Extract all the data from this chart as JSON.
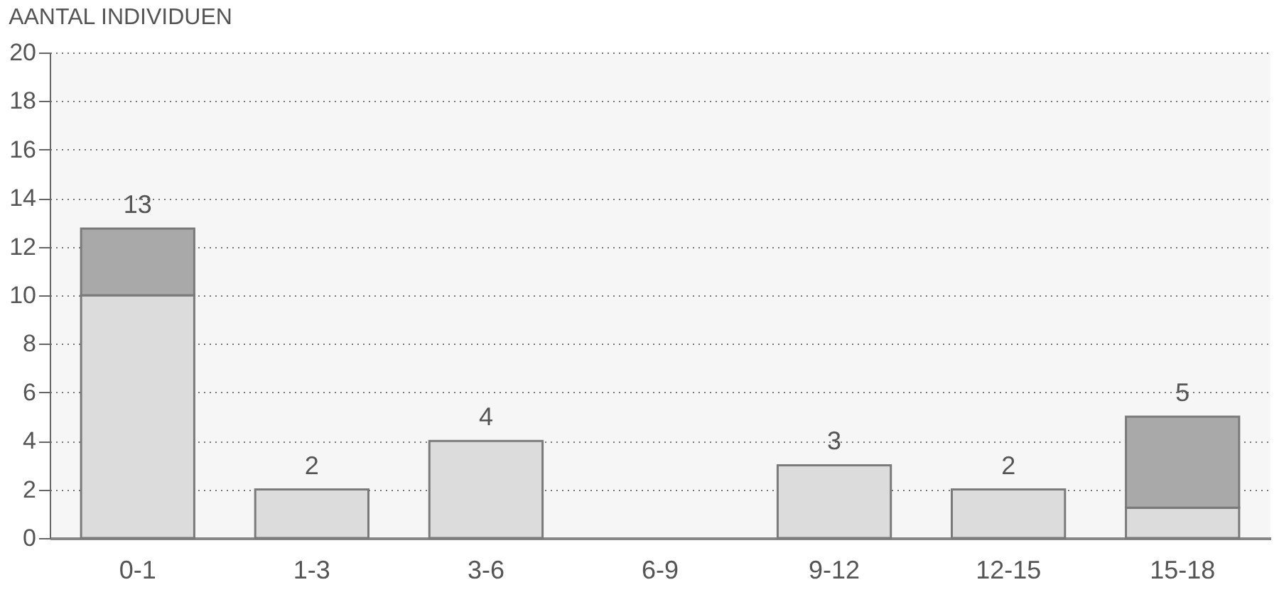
{
  "chart_data": {
    "type": "bar",
    "title": "AANTAL INDIVIDUEN",
    "stacked": true,
    "categories": [
      "0-1",
      "1-3",
      "3-6",
      "6-9",
      "9-12",
      "12-15",
      "15-18"
    ],
    "series": [
      {
        "color": "#dcdcdc",
        "values": [
          10,
          2,
          4,
          null,
          3,
          2,
          1.25
        ]
      },
      {
        "color": "#a9a9a9",
        "values": [
          2.75,
          null,
          null,
          null,
          null,
          null,
          3.75
        ]
      }
    ],
    "totals": [
      "13",
      "2",
      "4",
      null,
      "3",
      "2",
      "5"
    ],
    "ylim": [
      0,
      20
    ],
    "yticks": [
      0,
      2,
      4,
      6,
      8,
      10,
      12,
      14,
      16,
      18,
      20
    ],
    "grid": "y",
    "legend": false
  }
}
